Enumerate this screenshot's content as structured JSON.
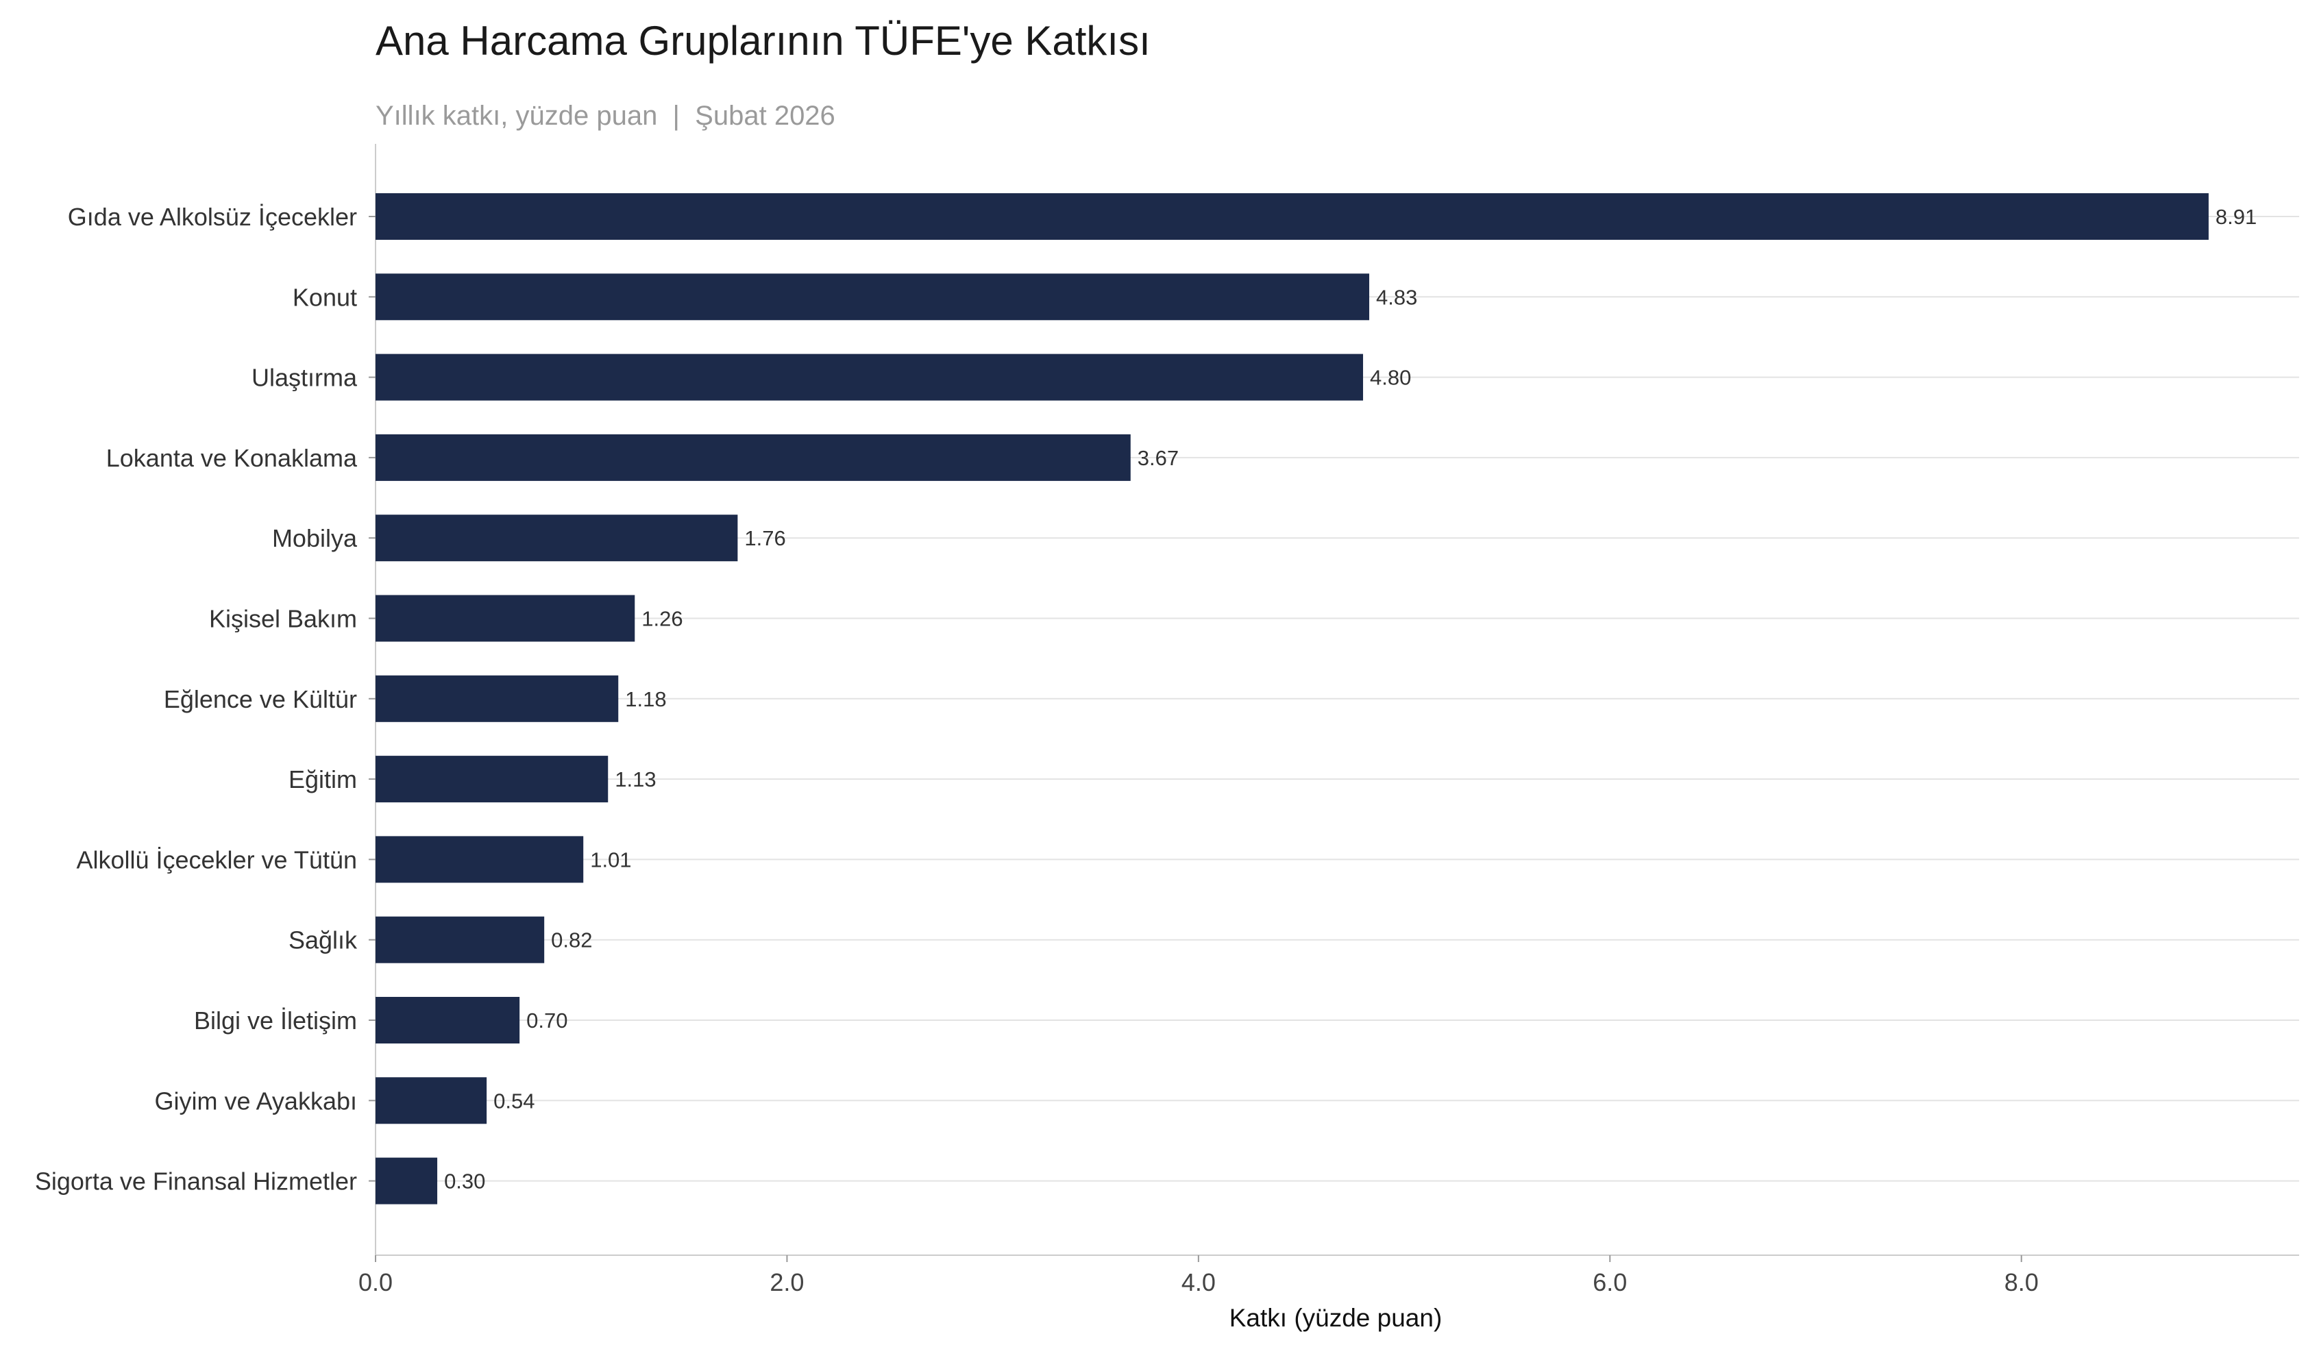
{
  "chart_data": {
    "type": "bar",
    "orientation": "horizontal",
    "title": "Ana Harcama Gruplarının TÜFE'ye Katkısı",
    "subtitle": "Yıllık katkı, yüzde puan  |  Şubat 2026",
    "xlabel": "Katkı (yüzde puan)",
    "ylabel": "",
    "categories": [
      "Gıda ve Alkolsüz İçecekler",
      "Konut",
      "Ulaştırma",
      "Lokanta ve Konaklama",
      "Mobilya",
      "Kişisel Bakım",
      "Eğlence ve Kültür",
      "Eğitim",
      "Alkollü İçecekler ve Tütün",
      "Sağlık",
      "Bilgi ve İletişim",
      "Giyim ve Ayakkabı",
      "Sigorta ve Finansal Hizmetler"
    ],
    "values": [
      8.91,
      4.83,
      4.8,
      3.67,
      1.76,
      1.26,
      1.18,
      1.13,
      1.01,
      0.82,
      0.7,
      0.54,
      0.3
    ],
    "value_labels": [
      "8.91",
      "4.83",
      "4.80",
      "3.67",
      "1.76",
      "1.26",
      "1.18",
      "1.13",
      "1.01",
      "0.82",
      "0.70",
      "0.54",
      "0.30"
    ],
    "xticks": [
      0,
      2,
      4,
      6,
      8
    ],
    "xtick_labels": [
      "0.0",
      "2.0",
      "4.0",
      "6.0",
      "8.0"
    ],
    "xlim": [
      0,
      9.35
    ],
    "grid": "horizontal-lines",
    "legend": "none",
    "colors": {
      "bar": "#1c2a4a",
      "grid": "#e3e3e3",
      "axis": "#cccccc"
    }
  }
}
